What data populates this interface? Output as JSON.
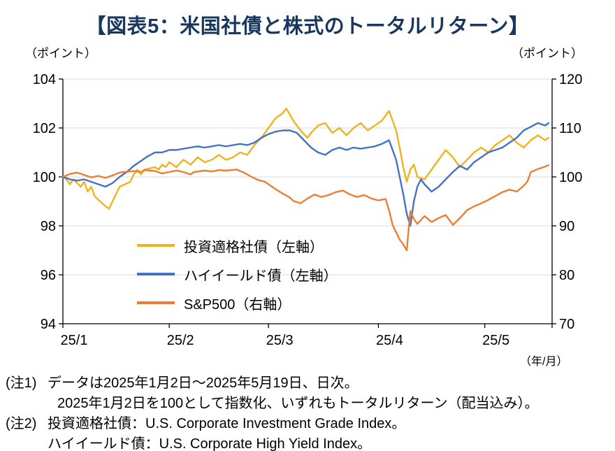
{
  "title": "【図表5：米国社債と株式のトータルリターン】",
  "left_axis_unit": "（ポイント）",
  "right_axis_unit": "（ポイント）",
  "x_axis_unit": "（年/月）",
  "colors": {
    "title": "#17375E",
    "grid": "#D9D9D9",
    "axis": "#000000",
    "investment_grade": "#EFB320",
    "high_yield": "#4472C4",
    "sp500": "#ED7D31"
  },
  "notes": [
    {
      "label": "(注1)",
      "lines": [
        "データは2025年1月2日～2025年5月19日、日次。",
        "2025年1月2日を100として指数化、いずれもトータルリターン（配当込み）。"
      ]
    },
    {
      "label": "(注2)",
      "lines": [
        "投資適格社債：U.S. Corporate Investment Grade Index。",
        "ハイイールド債：U.S. Corporate High Yield Index。"
      ]
    }
  ],
  "chart_data": {
    "type": "line",
    "title": "米国社債と株式のトータルリターン",
    "x_unit": "days from 2025-01-01 (daily data 2025-01-02 to 2025-05-19, indexed 2025-01-02 = 100)",
    "x_range": [
      1,
      139
    ],
    "x_ticks": [
      {
        "t": 1,
        "label": "25/1"
      },
      {
        "t": 31,
        "label": "25/2"
      },
      {
        "t": 59,
        "label": "25/3"
      },
      {
        "t": 90,
        "label": "25/4"
      },
      {
        "t": 120,
        "label": "25/5"
      }
    ],
    "left_axis": {
      "range": [
        94,
        104
      ],
      "ticks": [
        94,
        96,
        98,
        100,
        102,
        104
      ]
    },
    "right_axis": {
      "range": [
        70,
        120
      ],
      "ticks": [
        70,
        80,
        90,
        100,
        110,
        120
      ]
    },
    "grid": true,
    "legend_position": "inside-lower-left",
    "series": [
      {
        "name": "投資適格社債（左軸）",
        "axis": "left",
        "color": "#EFB320",
        "points": [
          [
            1,
            100
          ],
          [
            2,
            99.9
          ],
          [
            3,
            99.7
          ],
          [
            4,
            99.9
          ],
          [
            6,
            99.6
          ],
          [
            7,
            99.8
          ],
          [
            8,
            99.4
          ],
          [
            9,
            99.6
          ],
          [
            10,
            99.2
          ],
          [
            13,
            98.8
          ],
          [
            14,
            98.7
          ],
          [
            15,
            99
          ],
          [
            16,
            99.3
          ],
          [
            17,
            99.6
          ],
          [
            20,
            99.8
          ],
          [
            21,
            100.1
          ],
          [
            22,
            100.3
          ],
          [
            23,
            100.1
          ],
          [
            24,
            100.3
          ],
          [
            27,
            100.4
          ],
          [
            28,
            100.3
          ],
          [
            29,
            100.5
          ],
          [
            30,
            100.4
          ],
          [
            31,
            100.6
          ],
          [
            33,
            100.4
          ],
          [
            35,
            100.7
          ],
          [
            37,
            100.5
          ],
          [
            39,
            100.8
          ],
          [
            41,
            100.6
          ],
          [
            43,
            100.7
          ],
          [
            45,
            100.9
          ],
          [
            47,
            100.7
          ],
          [
            49,
            100.8
          ],
          [
            51,
            101
          ],
          [
            53,
            100.9
          ],
          [
            55,
            101.3
          ],
          [
            57,
            101.6
          ],
          [
            59,
            102
          ],
          [
            61,
            102.4
          ],
          [
            63,
            102.6
          ],
          [
            64,
            102.8
          ],
          [
            66,
            102.3
          ],
          [
            68,
            101.9
          ],
          [
            70,
            101.6
          ],
          [
            71,
            101.8
          ],
          [
            73,
            102.1
          ],
          [
            75,
            102.2
          ],
          [
            77,
            101.8
          ],
          [
            79,
            102
          ],
          [
            81,
            101.7
          ],
          [
            83,
            102
          ],
          [
            85,
            102.2
          ],
          [
            87,
            101.9
          ],
          [
            89,
            102.1
          ],
          [
            91,
            102.3
          ],
          [
            92,
            102.5
          ],
          [
            93,
            102.7
          ],
          [
            95,
            101.9
          ],
          [
            96,
            101.2
          ],
          [
            97,
            100.4
          ],
          [
            98,
            99.8
          ],
          [
            99,
            100.3
          ],
          [
            100,
            100.5
          ],
          [
            101,
            100
          ],
          [
            103,
            99.9
          ],
          [
            105,
            100.3
          ],
          [
            107,
            100.7
          ],
          [
            109,
            101.1
          ],
          [
            111,
            100.8
          ],
          [
            113,
            100.4
          ],
          [
            115,
            100.7
          ],
          [
            117,
            101
          ],
          [
            119,
            101.2
          ],
          [
            121,
            101
          ],
          [
            123,
            101.3
          ],
          [
            125,
            101.5
          ],
          [
            127,
            101.7
          ],
          [
            129,
            101.4
          ],
          [
            131,
            101.2
          ],
          [
            133,
            101.5
          ],
          [
            135,
            101.7
          ],
          [
            137,
            101.5
          ],
          [
            138,
            101.6
          ]
        ]
      },
      {
        "name": "ハイイールド債（左軸）",
        "axis": "left",
        "color": "#4472C4",
        "points": [
          [
            1,
            100
          ],
          [
            3,
            99.9
          ],
          [
            5,
            99.85
          ],
          [
            7,
            99.9
          ],
          [
            9,
            99.8
          ],
          [
            11,
            99.7
          ],
          [
            13,
            99.6
          ],
          [
            15,
            99.75
          ],
          [
            17,
            100
          ],
          [
            19,
            100.2
          ],
          [
            21,
            100.45
          ],
          [
            23,
            100.65
          ],
          [
            25,
            100.85
          ],
          [
            27,
            101
          ],
          [
            29,
            101
          ],
          [
            31,
            101.1
          ],
          [
            33,
            101.1
          ],
          [
            35,
            101.15
          ],
          [
            37,
            101.2
          ],
          [
            39,
            101.25
          ],
          [
            41,
            101.2
          ],
          [
            43,
            101.25
          ],
          [
            45,
            101.3
          ],
          [
            47,
            101.25
          ],
          [
            49,
            101.3
          ],
          [
            51,
            101.35
          ],
          [
            53,
            101.3
          ],
          [
            55,
            101.4
          ],
          [
            57,
            101.6
          ],
          [
            59,
            101.75
          ],
          [
            61,
            101.85
          ],
          [
            63,
            101.9
          ],
          [
            65,
            101.9
          ],
          [
            67,
            101.8
          ],
          [
            69,
            101.5
          ],
          [
            71,
            101.2
          ],
          [
            73,
            101
          ],
          [
            75,
            100.9
          ],
          [
            77,
            101.1
          ],
          [
            79,
            101.2
          ],
          [
            81,
            101.1
          ],
          [
            83,
            101.2
          ],
          [
            85,
            101.15
          ],
          [
            87,
            101.2
          ],
          [
            89,
            101.25
          ],
          [
            91,
            101.35
          ],
          [
            93,
            101.5
          ],
          [
            95,
            100.7
          ],
          [
            97,
            99.3
          ],
          [
            98,
            98.5
          ],
          [
            99,
            98
          ],
          [
            100,
            99
          ],
          [
            101,
            99.6
          ],
          [
            102,
            99.9
          ],
          [
            103,
            99.7
          ],
          [
            105,
            99.4
          ],
          [
            107,
            99.6
          ],
          [
            109,
            99.9
          ],
          [
            111,
            100.2
          ],
          [
            113,
            100.45
          ],
          [
            115,
            100.3
          ],
          [
            117,
            100.6
          ],
          [
            119,
            100.8
          ],
          [
            121,
            101
          ],
          [
            123,
            101.1
          ],
          [
            125,
            101.2
          ],
          [
            127,
            101.4
          ],
          [
            129,
            101.6
          ],
          [
            131,
            101.9
          ],
          [
            133,
            102.05
          ],
          [
            135,
            102.2
          ],
          [
            137,
            102.1
          ],
          [
            138,
            102.2
          ]
        ]
      },
      {
        "name": "S&P500（右軸）",
        "axis": "right",
        "color": "#ED7D31",
        "points": [
          [
            1,
            100
          ],
          [
            3,
            100.6
          ],
          [
            5,
            100.9
          ],
          [
            7,
            100.4
          ],
          [
            9,
            99.9
          ],
          [
            11,
            100.2
          ],
          [
            13,
            99.8
          ],
          [
            15,
            100.3
          ],
          [
            17,
            100.9
          ],
          [
            21,
            101.2
          ],
          [
            23,
            101
          ],
          [
            24,
            101.4
          ],
          [
            27,
            101.2
          ],
          [
            29,
            100.7
          ],
          [
            31,
            101
          ],
          [
            33,
            101.3
          ],
          [
            35,
            101
          ],
          [
            37,
            100.5
          ],
          [
            38,
            101
          ],
          [
            41,
            101.3
          ],
          [
            43,
            101.1
          ],
          [
            45,
            101.4
          ],
          [
            47,
            101.3
          ],
          [
            50,
            101.5
          ],
          [
            52,
            100.9
          ],
          [
            54,
            100.1
          ],
          [
            56,
            99.4
          ],
          [
            58,
            99
          ],
          [
            59,
            98.5
          ],
          [
            61,
            97.5
          ],
          [
            63,
            96.6
          ],
          [
            65,
            95.8
          ],
          [
            66,
            95.1
          ],
          [
            68,
            94.6
          ],
          [
            70,
            95.6
          ],
          [
            72,
            96.4
          ],
          [
            74,
            95.9
          ],
          [
            76,
            96.3
          ],
          [
            78,
            96.9
          ],
          [
            80,
            97.2
          ],
          [
            82,
            96.4
          ],
          [
            84,
            95.9
          ],
          [
            86,
            96.3
          ],
          [
            88,
            95.6
          ],
          [
            90,
            95.2
          ],
          [
            92,
            95.5
          ],
          [
            93,
            93.2
          ],
          [
            94,
            90.2
          ],
          [
            96,
            87.2
          ],
          [
            97,
            86.2
          ],
          [
            98,
            85
          ],
          [
            99,
            93
          ],
          [
            100,
            91.4
          ],
          [
            101,
            90.4
          ],
          [
            103,
            92
          ],
          [
            105,
            90.8
          ],
          [
            107,
            91.6
          ],
          [
            109,
            92.2
          ],
          [
            111,
            90.2
          ],
          [
            113,
            91.6
          ],
          [
            115,
            93.2
          ],
          [
            117,
            94
          ],
          [
            119,
            94.6
          ],
          [
            121,
            95.3
          ],
          [
            123,
            96.1
          ],
          [
            125,
            96.9
          ],
          [
            127,
            97.4
          ],
          [
            129,
            97
          ],
          [
            131,
            98.2
          ],
          [
            132,
            99
          ],
          [
            133,
            101
          ],
          [
            135,
            101.6
          ],
          [
            137,
            102.1
          ],
          [
            138,
            102.4
          ]
        ]
      }
    ]
  }
}
